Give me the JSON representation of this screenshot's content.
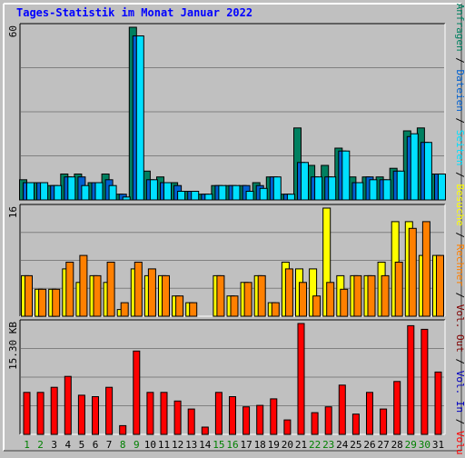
{
  "chart_data": {
    "type": "bar",
    "title": "Tages-Statistik im Monat Januar 2022",
    "colors": {
      "anfragen": "#008060",
      "dateien": "#0060d0",
      "seiten": "#00e0ff",
      "besuche": "#ffff00",
      "rechner": "#ff8000",
      "out": "#800000",
      "volumen": "#ff0000",
      "in": "#0000c0",
      "title": "#0000ff",
      "weekday_label": "#000000",
      "weekend_label": "#008000",
      "background": "#c0c0c0"
    },
    "x": [
      "1",
      "2",
      "3",
      "4",
      "5",
      "6",
      "7",
      "8",
      "9",
      "10",
      "11",
      "12",
      "13",
      "14",
      "15",
      "16",
      "17",
      "18",
      "19",
      "20",
      "21",
      "22",
      "23",
      "24",
      "25",
      "26",
      "27",
      "28",
      "29",
      "30",
      "31"
    ],
    "weekend_days": [
      "1",
      "2",
      "8",
      "9",
      "15",
      "16",
      "22",
      "23",
      "29",
      "30"
    ],
    "panels": [
      {
        "name": "requests",
        "ymax_label": "60",
        "ylim": [
          0,
          60
        ],
        "series": [
          {
            "name": "Anfragen",
            "values": [
              7,
              6,
              5,
              9,
              9,
              6,
              9,
              2,
              60,
              10,
              8,
              6,
              3,
              2,
              5,
              5,
              5,
              6,
              8,
              2,
              25,
              12,
              12,
              18,
              8,
              8,
              8,
              11,
              24,
              25,
              9
            ]
          },
          {
            "name": "Dateien",
            "values": [
              6,
              6,
              5,
              8,
              8,
              6,
              7,
              2,
              57,
              7,
              6,
              5,
              3,
              2,
              5,
              5,
              5,
              5,
              8,
              2,
              13,
              8,
              8,
              17,
              6,
              8,
              7,
              10,
              22,
              20,
              9
            ]
          },
          {
            "name": "Seiten",
            "values": [
              6,
              6,
              5,
              8,
              5,
              6,
              5,
              1,
              57,
              7,
              6,
              3,
              3,
              2,
              5,
              5,
              3,
              4,
              8,
              2,
              13,
              8,
              8,
              17,
              6,
              7,
              7,
              10,
              23,
              20,
              9
            ]
          }
        ]
      },
      {
        "name": "visits",
        "ymax_label": "16",
        "ylim": [
          0,
          16
        ],
        "series": [
          {
            "name": "Besuche",
            "values": [
              6,
              4,
              4,
              7,
              5,
              6,
              5,
              1,
              7,
              6,
              6,
              3,
              2,
              0,
              6,
              3,
              5,
              6,
              2,
              8,
              7,
              7,
              16,
              6,
              6,
              6,
              8,
              14,
              14,
              9,
              9
            ]
          },
          {
            "name": "Rechner",
            "values": [
              6,
              4,
              4,
              8,
              9,
              6,
              8,
              2,
              8,
              7,
              6,
              3,
              2,
              0,
              6,
              3,
              5,
              6,
              2,
              7,
              5,
              3,
              5,
              4,
              6,
              6,
              6,
              8,
              13,
              14,
              9
            ]
          }
        ]
      },
      {
        "name": "volume",
        "ymax_label": "15.30 KB",
        "ylim": [
          0,
          15.3
        ],
        "series": [
          {
            "name": "Volumen",
            "values": [
              5.8,
              5.8,
              6.5,
              8.0,
              5.4,
              5.2,
              6.5,
              1.2,
              11.5,
              5.8,
              5.8,
              4.6,
              3.5,
              1.0,
              5.8,
              5.2,
              3.8,
              4.0,
              4.9,
              2.0,
              15.3,
              3.0,
              3.8,
              6.8,
              2.8,
              5.8,
              3.5,
              7.3,
              15.0,
              14.5,
              8.6
            ]
          }
        ]
      }
    ],
    "right_legend": [
      {
        "text": "Anfragen",
        "color": "#008060"
      },
      {
        "text": "/",
        "color": "#000000"
      },
      {
        "text": "Dateien",
        "color": "#0060d0"
      },
      {
        "text": "/",
        "color": "#000000"
      },
      {
        "text": "Seiten",
        "color": "#00e0ff"
      },
      {
        "text": "/",
        "color": "#000000"
      },
      {
        "text": "Besuche",
        "color": "#ffff00"
      },
      {
        "text": "/",
        "color": "#000000"
      },
      {
        "text": "Rechner",
        "color": "#ff8000"
      },
      {
        "text": "/",
        "color": "#000000"
      },
      {
        "text": "Vol. Out",
        "color": "#800000"
      },
      {
        "text": "/",
        "color": "#000000"
      },
      {
        "text": "Vol. In",
        "color": "#0000c0"
      },
      {
        "text": "/",
        "color": "#000000"
      },
      {
        "text": "Volumen",
        "color": "#ff0000"
      }
    ],
    "grid": true,
    "legend_position": "right, vertical"
  }
}
